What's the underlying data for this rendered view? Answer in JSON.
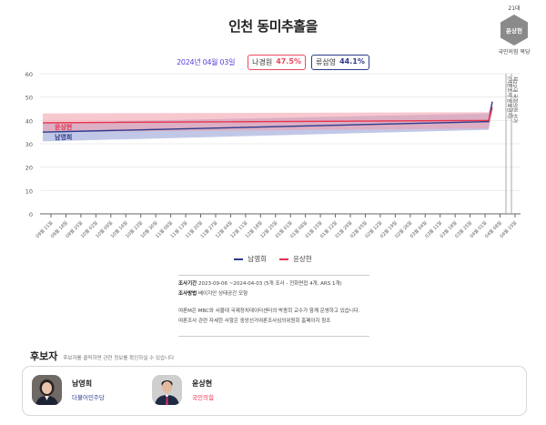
{
  "header": {
    "title": "인천 동미추홀을",
    "badge": {
      "term": "21대",
      "name": "윤상현",
      "party": "국민의힘 복당"
    }
  },
  "summary": {
    "date": "2024년 04월 03일",
    "pills": [
      {
        "name": "나경원",
        "pct": "47.5%",
        "color": "#e84a5f"
      },
      {
        "name": "류삼영",
        "pct": "44.1%",
        "color": "#2e3a8c"
      }
    ]
  },
  "chart_data": {
    "type": "line",
    "title": "인천 동미추홀을",
    "xlabel": "",
    "ylabel": "",
    "ylim": [
      0,
      60
    ],
    "yticks": [
      0,
      10,
      20,
      30,
      40,
      50,
      60
    ],
    "grid": true,
    "legend_position": "bottom",
    "categories": [
      "09월 11일",
      "09월 18일",
      "09월 25일",
      "10월 02일",
      "10월 09일",
      "10월 16일",
      "10월 23일",
      "10월 30일",
      "11월 06일",
      "11월 13일",
      "11월 20일",
      "11월 27일",
      "12월 04일",
      "12월 11일",
      "12월 18일",
      "12월 25일",
      "01월 01일",
      "01월 08일",
      "01월 15일",
      "01월 22일",
      "01월 29일",
      "02월 05일",
      "02월 12일",
      "02월 19일",
      "02월 26일",
      "03월 04일",
      "03월 11일",
      "03월 18일",
      "03월 25일",
      "04월 01일",
      "04월 08일",
      "04월 15일"
    ],
    "series": [
      {
        "name": "남영희",
        "color": "#2e3a8c",
        "band_color": "#8e9ad3",
        "x_start": "09월 06일",
        "x_end": "04월 03일",
        "values": [
          35,
          39.5,
          48
        ],
        "points_at": [
          "09월 06일",
          "04월 01일",
          "04월 03일"
        ],
        "band_low": [
          31,
          36,
          46
        ],
        "band_high": [
          39,
          43,
          49
        ]
      },
      {
        "name": "윤상현",
        "color": "#e8334e",
        "band_color": "#f29aa8",
        "x_start": "09월 06일",
        "x_end": "04월 03일",
        "values": [
          39,
          40,
          45.5
        ],
        "points_at": [
          "09월 06일",
          "04월 01일",
          "04월 03일"
        ],
        "band_low": [
          35,
          36.5,
          43
        ],
        "band_high": [
          43,
          43.5,
          48
        ]
      }
    ],
    "annotations": [
      {
        "label": "윤상현",
        "series": "윤상현"
      },
      {
        "label": "남영희",
        "series": "남영희"
      },
      {
        "label": "제22대 국회의원 선거",
        "type": "vline",
        "at": "04월 10일"
      },
      {
        "label": "(여론조사 공표금지)",
        "type": "vline",
        "at": "04월 04일"
      }
    ]
  },
  "legend": [
    {
      "name": "남영희",
      "color": "#2e3a8c"
    },
    {
      "name": "윤상현",
      "color": "#e8334e"
    }
  ],
  "info": {
    "period_label": "조사기간",
    "period_value": "2023-09-06 ~2024-04-03 (5개 조사 - 전화면접 4개, ARS 1개)",
    "method_label": "조사방법",
    "method_value": "베이지안 상태공간 모형",
    "note1": "여론M은 MBC와 서울대 국제정치데이터센터의 박종희 교수가 함께 운영하고 있습니다.",
    "note2": "여론조사 관련 자세한 사항은 중앙선거여론조사심의위원회 홈페이지 참조"
  },
  "candidates": {
    "title": "후보자",
    "subtitle": "후보자를 클릭하면 관련 정보를 확인하실 수 있습니다",
    "list": [
      {
        "name": "남영희",
        "party": "더불어민주당",
        "party_color": "#2e3a8c"
      },
      {
        "name": "윤상현",
        "party": "국민의힘",
        "party_color": "#e8334e"
      }
    ]
  }
}
